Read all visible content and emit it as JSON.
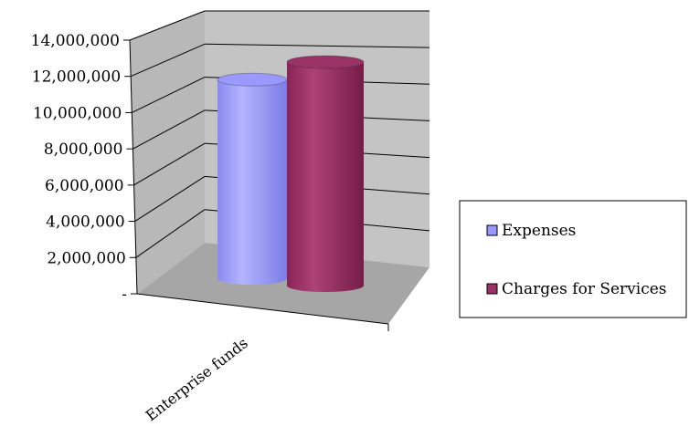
{
  "chart_data": {
    "type": "bar",
    "style": "3d-cylinder",
    "categories": [
      "Enterprise funds"
    ],
    "series": [
      {
        "name": "Expenses",
        "values": [
          12000000
        ],
        "color": "#9999ff"
      },
      {
        "name": "Charges for Services",
        "values": [
          13500000
        ],
        "color": "#993366"
      }
    ],
    "title": "",
    "xlabel": "",
    "ylabel": "",
    "ylim": [
      0,
      14000000
    ],
    "y_ticks": [
      {
        "value": 0,
        "label": "-"
      },
      {
        "value": 2000000,
        "label": "2,000,000"
      },
      {
        "value": 4000000,
        "label": "4,000,000"
      },
      {
        "value": 6000000,
        "label": "6,000,000"
      },
      {
        "value": 8000000,
        "label": "8,000,000"
      },
      {
        "value": 10000000,
        "label": "10,000,000"
      },
      {
        "value": 12000000,
        "label": "12,000,000"
      },
      {
        "value": 14000000,
        "label": "14,000,000"
      }
    ],
    "grid": true,
    "legend_position": "right",
    "colors": {
      "wall": "#c0c0c0",
      "floor": "#a6a6a6",
      "gridline": "#000000"
    }
  }
}
